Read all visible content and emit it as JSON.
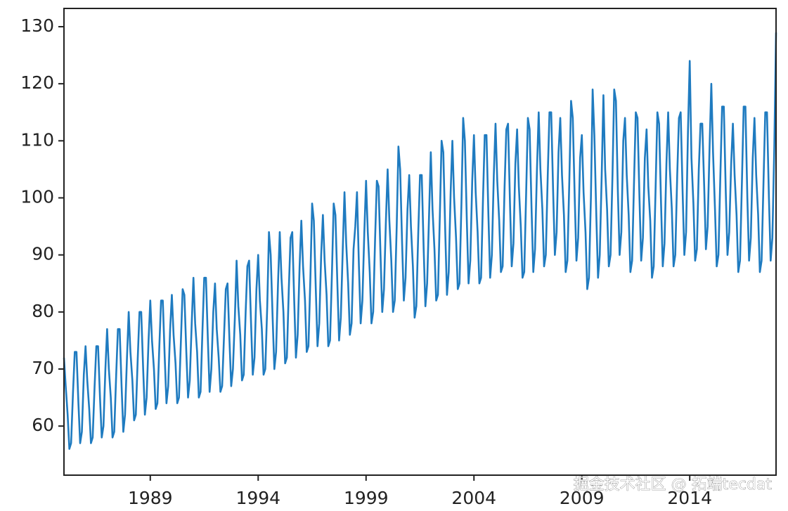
{
  "chart_data": {
    "type": "line",
    "color": "#1f7bc0",
    "xlim": [
      1985,
      2018
    ],
    "ylim": [
      51.4,
      133.2
    ],
    "xticks": [
      1989,
      1994,
      1999,
      2004,
      2009,
      2014
    ],
    "yticks": [
      60,
      70,
      80,
      90,
      100,
      110,
      120,
      130
    ],
    "annotation": "掘金技术社区 @ 拓端tecdat",
    "x": [
      1985.0,
      1985.08,
      1985.17,
      1985.25,
      1985.33,
      1985.42,
      1985.5,
      1985.58,
      1985.67,
      1985.75,
      1985.83,
      1985.92,
      1986.0,
      1986.08,
      1986.17,
      1986.25,
      1986.33,
      1986.42,
      1986.5,
      1986.58,
      1986.67,
      1986.75,
      1986.83,
      1986.92,
      1987.0,
      1987.08,
      1987.17,
      1987.25,
      1987.33,
      1987.42,
      1987.5,
      1987.58,
      1987.67,
      1987.75,
      1987.83,
      1987.92,
      1988.0,
      1988.08,
      1988.17,
      1988.25,
      1988.33,
      1988.42,
      1988.5,
      1988.58,
      1988.67,
      1988.75,
      1988.83,
      1988.92,
      1989.0,
      1989.08,
      1989.17,
      1989.25,
      1989.33,
      1989.42,
      1989.5,
      1989.58,
      1989.67,
      1989.75,
      1989.83,
      1989.92,
      1990.0,
      1990.08,
      1990.17,
      1990.25,
      1990.33,
      1990.42,
      1990.5,
      1990.58,
      1990.67,
      1990.75,
      1990.83,
      1990.92,
      1991.0,
      1991.08,
      1991.17,
      1991.25,
      1991.33,
      1991.42,
      1991.5,
      1991.58,
      1991.67,
      1991.75,
      1991.83,
      1991.92,
      1992.0,
      1992.08,
      1992.17,
      1992.25,
      1992.33,
      1992.42,
      1992.5,
      1992.58,
      1992.67,
      1992.75,
      1992.83,
      1992.92,
      1993.0,
      1993.08,
      1993.17,
      1993.25,
      1993.33,
      1993.42,
      1993.5,
      1993.58,
      1993.67,
      1993.75,
      1993.83,
      1993.92,
      1994.0,
      1994.08,
      1994.17,
      1994.25,
      1994.33,
      1994.42,
      1994.5,
      1994.58,
      1994.67,
      1994.75,
      1994.83,
      1994.92,
      1995.0,
      1995.08,
      1995.17,
      1995.25,
      1995.33,
      1995.42,
      1995.5,
      1995.58,
      1995.67,
      1995.75,
      1995.83,
      1995.92,
      1996.0,
      1996.08,
      1996.17,
      1996.25,
      1996.33,
      1996.42,
      1996.5,
      1996.58,
      1996.67,
      1996.75,
      1996.83,
      1996.92,
      1997.0,
      1997.08,
      1997.17,
      1997.25,
      1997.33,
      1997.42,
      1997.5,
      1997.58,
      1997.67,
      1997.75,
      1997.83,
      1997.92,
      1998.0,
      1998.08,
      1998.17,
      1998.25,
      1998.33,
      1998.42,
      1998.5,
      1998.58,
      1998.67,
      1998.75,
      1998.83,
      1998.92,
      1999.0,
      1999.08,
      1999.17,
      1999.25,
      1999.33,
      1999.42,
      1999.5,
      1999.58,
      1999.67,
      1999.75,
      1999.83,
      1999.92,
      2000.0,
      2000.08,
      2000.17,
      2000.25,
      2000.33,
      2000.42,
      2000.5,
      2000.58,
      2000.67,
      2000.75,
      2000.83,
      2000.92,
      2001.0,
      2001.08,
      2001.17,
      2001.25,
      2001.33,
      2001.42,
      2001.5,
      2001.58,
      2001.67,
      2001.75,
      2001.83,
      2001.92,
      2002.0,
      2002.08,
      2002.17,
      2002.25,
      2002.33,
      2002.42,
      2002.5,
      2002.58,
      2002.67,
      2002.75,
      2002.83,
      2002.92,
      2003.0,
      2003.08,
      2003.17,
      2003.25,
      2003.33,
      2003.42,
      2003.5,
      2003.58,
      2003.67,
      2003.75,
      2003.83,
      2003.92,
      2004.0,
      2004.08,
      2004.17,
      2004.25,
      2004.33,
      2004.42,
      2004.5,
      2004.58,
      2004.67,
      2004.75,
      2004.83,
      2004.92,
      2005.0,
      2005.08,
      2005.17,
      2005.25,
      2005.33,
      2005.42,
      2005.5,
      2005.58,
      2005.67,
      2005.75,
      2005.83,
      2005.92,
      2006.0,
      2006.08,
      2006.17,
      2006.25,
      2006.33,
      2006.42,
      2006.5,
      2006.58,
      2006.67,
      2006.75,
      2006.83,
      2006.92,
      2007.0,
      2007.08,
      2007.17,
      2007.25,
      2007.33,
      2007.42,
      2007.5,
      2007.58,
      2007.67,
      2007.75,
      2007.83,
      2007.92,
      2008.0,
      2008.08,
      2008.17,
      2008.25,
      2008.33,
      2008.42,
      2008.5,
      2008.58,
      2008.67,
      2008.75,
      2008.83,
      2008.92,
      2009.0,
      2009.08,
      2009.17,
      2009.25,
      2009.33,
      2009.42,
      2009.5,
      2009.58,
      2009.67,
      2009.75,
      2009.83,
      2009.92,
      2010.0,
      2010.08,
      2010.17,
      2010.25,
      2010.33,
      2010.42,
      2010.5,
      2010.58,
      2010.67,
      2010.75,
      2010.83,
      2010.92,
      2011.0,
      2011.08,
      2011.17,
      2011.25,
      2011.33,
      2011.42,
      2011.5,
      2011.58,
      2011.67,
      2011.75,
      2011.83,
      2011.92,
      2012.0,
      2012.08,
      2012.17,
      2012.25,
      2012.33,
      2012.42,
      2012.5,
      2012.58,
      2012.67,
      2012.75,
      2012.83,
      2012.92,
      2013.0,
      2013.08,
      2013.17,
      2013.25,
      2013.33,
      2013.42,
      2013.5,
      2013.58,
      2013.67,
      2013.75,
      2013.83,
      2013.92,
      2014.0,
      2014.08,
      2014.17,
      2014.25,
      2014.33,
      2014.42,
      2014.5,
      2014.58,
      2014.67,
      2014.75,
      2014.83,
      2014.92,
      2015.0,
      2015.08,
      2015.17,
      2015.25,
      2015.33,
      2015.42,
      2015.5,
      2015.58,
      2015.67,
      2015.75,
      2015.83,
      2015.92,
      2016.0,
      2016.08,
      2016.17,
      2016.25,
      2016.33,
      2016.42,
      2016.5,
      2016.58,
      2016.67,
      2016.75,
      2016.83,
      2016.92,
      2017.0,
      2017.08,
      2017.17,
      2017.25,
      2017.33,
      2017.42,
      2017.5,
      2017.58,
      2017.67,
      2017.75,
      2017.83,
      2017.92,
      2018.0
    ],
    "values": [
      72,
      67,
      62,
      56,
      57,
      66,
      73,
      73,
      64,
      57,
      59,
      69,
      74,
      68,
      63,
      57,
      58,
      67,
      74,
      74,
      65,
      58,
      60,
      70,
      77,
      70,
      65,
      58,
      59,
      69,
      77,
      77,
      67,
      59,
      62,
      72,
      80,
      73,
      68,
      61,
      62,
      72,
      80,
      80,
      70,
      62,
      65,
      75,
      82,
      75,
      70,
      63,
      64,
      74,
      82,
      82,
      72,
      64,
      67,
      77,
      83,
      76,
      71,
      64,
      65,
      75,
      84,
      83,
      73,
      65,
      68,
      78,
      86,
      78,
      73,
      65,
      66,
      77,
      86,
      86,
      75,
      66,
      70,
      80,
      85,
      77,
      72,
      66,
      67,
      76,
      84,
      85,
      75,
      67,
      70,
      79,
      89,
      81,
      76,
      68,
      69,
      80,
      88,
      89,
      78,
      69,
      72,
      84,
      90,
      82,
      77,
      69,
      70,
      81,
      94,
      90,
      79,
      70,
      73,
      85,
      94,
      86,
      80,
      71,
      72,
      84,
      93,
      94,
      82,
      72,
      76,
      88,
      96,
      88,
      82,
      73,
      74,
      86,
      99,
      96,
      84,
      74,
      78,
      90,
      97,
      89,
      83,
      74,
      75,
      87,
      99,
      97,
      85,
      75,
      79,
      91,
      101,
      92,
      85,
      76,
      78,
      91,
      95,
      101,
      88,
      78,
      82,
      94,
      103,
      94,
      87,
      78,
      80,
      93,
      103,
      102,
      90,
      80,
      84,
      96,
      105,
      96,
      89,
      80,
      82,
      95,
      109,
      105,
      92,
      82,
      86,
      98,
      104,
      95,
      88,
      79,
      81,
      94,
      104,
      104,
      91,
      81,
      85,
      97,
      108,
      98,
      91,
      82,
      83,
      97,
      110,
      108,
      94,
      83,
      87,
      101,
      110,
      100,
      93,
      84,
      85,
      99,
      114,
      110,
      96,
      85,
      89,
      103,
      111,
      101,
      94,
      85,
      86,
      100,
      111,
      111,
      97,
      86,
      90,
      104,
      113,
      103,
      96,
      87,
      88,
      102,
      112,
      113,
      99,
      88,
      92,
      106,
      112,
      102,
      95,
      86,
      87,
      101,
      114,
      112,
      98,
      87,
      91,
      105,
      115,
      105,
      98,
      88,
      90,
      104,
      115,
      115,
      101,
      90,
      94,
      108,
      114,
      104,
      97,
      87,
      89,
      103,
      117,
      114,
      100,
      89,
      93,
      107,
      111,
      101,
      94,
      84,
      86,
      100,
      119,
      111,
      97,
      86,
      90,
      104,
      118,
      105,
      98,
      88,
      90,
      104,
      119,
      117,
      101,
      90,
      94,
      110,
      114,
      104,
      97,
      87,
      89,
      103,
      115,
      114,
      100,
      89,
      93,
      107,
      112,
      102,
      96,
      86,
      88,
      102,
      115,
      113,
      99,
      88,
      92,
      106,
      115,
      105,
      98,
      88,
      90,
      104,
      114,
      115,
      101,
      90,
      94,
      112,
      124,
      107,
      99,
      89,
      91,
      105,
      113,
      113,
      102,
      91,
      95,
      109,
      120,
      108,
      98,
      88,
      90,
      104,
      116,
      116,
      101,
      90,
      94,
      106,
      113,
      104,
      97,
      87,
      89,
      103,
      116,
      116,
      100,
      89,
      93,
      107,
      114,
      104,
      97,
      87,
      89,
      103,
      115,
      115,
      100,
      89,
      93,
      109,
      129
    ]
  }
}
